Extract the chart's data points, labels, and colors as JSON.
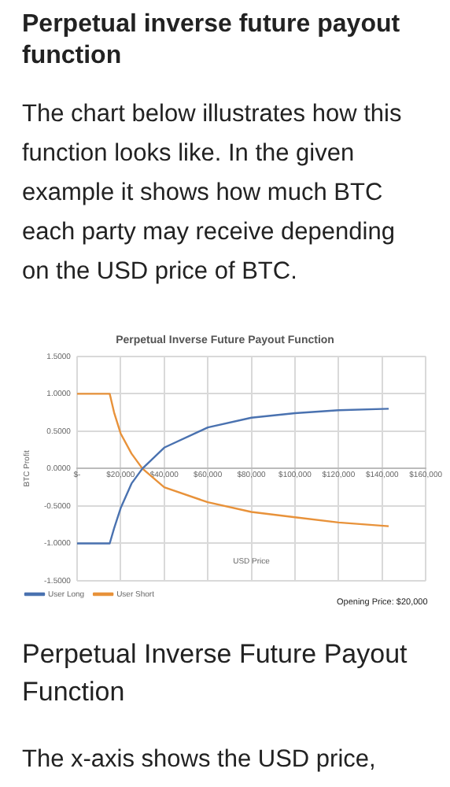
{
  "chart_data": {
    "type": "line",
    "title": "Perpetual Inverse Future Payout Function",
    "xlabel": "USD Price",
    "ylabel": "BTC Profit",
    "annotations": [
      "Perpetual inverse future payout function",
      "The chart below illustrates how this function looks like. In the given example it shows how much BTC each party may receive depending on the USD price of BTC.",
      "Opening Price: $20,000",
      "Perpetual Inverse Future Payout Function",
      "The x-axis shows the USD price,"
    ],
    "series": [
      {
        "name": "User Long",
        "color": "#4a72b0",
        "x": [
          0,
          15000,
          17000,
          20000,
          25000,
          30000,
          40000,
          60000,
          80000,
          100000,
          120000,
          143000
        ],
        "values": [
          -1,
          -1,
          -0.8,
          -0.53,
          -0.2,
          0,
          0.28,
          0.55,
          0.68,
          0.74,
          0.78,
          0.8
        ]
      },
      {
        "name": "User Short",
        "color": "#e8923a",
        "x": [
          0,
          15000,
          17000,
          20000,
          25000,
          30000,
          40000,
          60000,
          80000,
          100000,
          120000,
          143000
        ],
        "values": [
          1,
          1,
          0.75,
          0.47,
          0.2,
          0,
          -0.25,
          -0.45,
          -0.58,
          -0.65,
          -0.72,
          -0.77
        ]
      }
    ],
    "xlim": [
      0,
      160000
    ],
    "xticks": [
      {
        "value": 0,
        "label": "$-"
      },
      {
        "value": 20000,
        "label": "$20,000"
      },
      {
        "value": 40000,
        "label": "$40,000"
      },
      {
        "value": 60000,
        "label": "$60,000"
      },
      {
        "value": 80000,
        "label": "$80,000"
      },
      {
        "value": 100000,
        "label": "$100,000"
      },
      {
        "value": 120000,
        "label": "$120,000"
      },
      {
        "value": 140000,
        "label": "$140,000"
      },
      {
        "value": 160000,
        "label": "$160,000"
      }
    ],
    "ylim": [
      -1.5,
      1.5
    ],
    "yticks": [
      {
        "value": -1.5,
        "label": "-1.5000"
      },
      {
        "value": -1,
        "label": "-1.0000"
      },
      {
        "value": -0.5,
        "label": "-0.5000"
      },
      {
        "value": 0,
        "label": "0.0000"
      },
      {
        "value": 0.5,
        "label": "0.5000"
      },
      {
        "value": 1,
        "label": "1.0000"
      },
      {
        "value": 1.5,
        "label": "1.5000"
      }
    ],
    "grid": true,
    "legend": "bottom",
    "marker": "none",
    "line_style": "solid"
  }
}
